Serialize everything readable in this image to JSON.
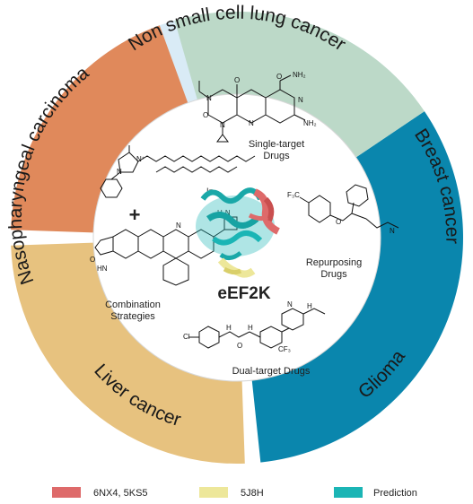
{
  "ring": {
    "segments": [
      {
        "label": "Non small cell lung cancer",
        "color": "#d9ebf6"
      },
      {
        "label": "Breast cancer",
        "color": "#0a86ad"
      },
      {
        "label": "Glioma",
        "color": "#e7c27f"
      },
      {
        "label": "Liver cancer",
        "color": "#e0895b"
      },
      {
        "label": "Nasopharyngeal carcinoma",
        "color": "#bcd9c8"
      }
    ]
  },
  "center": {
    "title": "eEF2K",
    "title_color": "#e0301e"
  },
  "drugs": {
    "single": "Single-target\nDrugs",
    "repurposing": "Repurposing\nDrugs",
    "dual": "Dual-target Drugs",
    "combination": "Combination\nStrategies",
    "plus": "+",
    "iodide": "I⁻"
  },
  "legend": [
    {
      "label": "6NX4, 5KS5",
      "color": "#de6a6a"
    },
    {
      "label": "5J8H",
      "color": "#ede79a"
    },
    {
      "label": "Prediction",
      "color": "#1bb5b5"
    }
  ]
}
